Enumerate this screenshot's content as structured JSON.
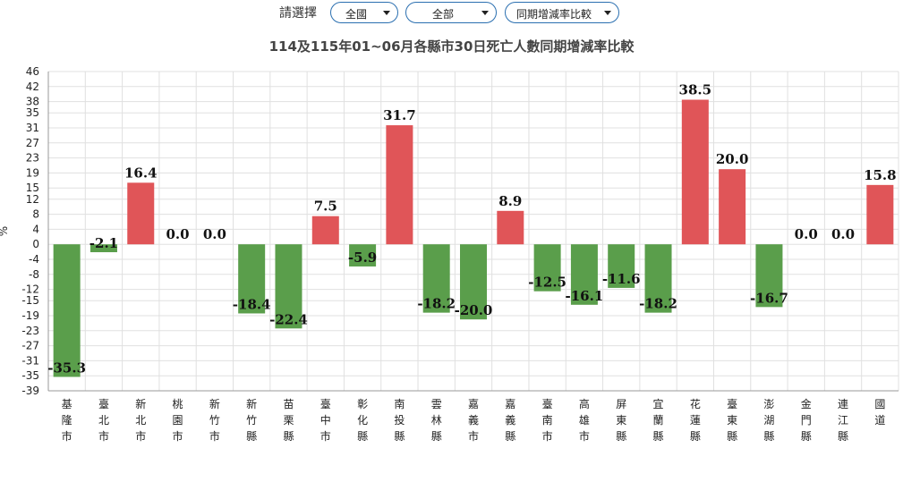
{
  "filters": {
    "label": "請選擇",
    "region": "全國",
    "type": "全部",
    "metric": "同期增減率比較"
  },
  "chart_data": {
    "type": "bar",
    "title": "114及115年01~06月各縣市30日死亡人數同期增減率比較",
    "ylabel": "%",
    "ylim": [
      -39,
      46
    ],
    "yticks": [
      46,
      42,
      38,
      35,
      31,
      27,
      23,
      19,
      15,
      12,
      8,
      4,
      0,
      -4,
      -8,
      -12,
      -15,
      -19,
      -23,
      -27,
      -31,
      -35,
      -39
    ],
    "grid": true,
    "categories": [
      "基隆市",
      "臺北市",
      "新北市",
      "桃園市",
      "新竹市",
      "新竹縣",
      "苗栗縣",
      "臺中市",
      "彰化縣",
      "南投縣",
      "雲林縣",
      "嘉義市",
      "嘉義縣",
      "臺南市",
      "高雄市",
      "屏東縣",
      "宜蘭縣",
      "花蓮縣",
      "臺東縣",
      "澎湖縣",
      "金門縣",
      "連江縣",
      "國道"
    ],
    "values": [
      -35.3,
      -2.1,
      16.4,
      0.0,
      0.0,
      -18.4,
      -22.4,
      7.5,
      -5.9,
      31.7,
      -18.2,
      -20.0,
      8.9,
      -12.5,
      -16.1,
      -11.6,
      -18.2,
      38.5,
      20.0,
      -16.7,
      0.0,
      0.0,
      15.8
    ],
    "labels": [
      "-35.3",
      "-2.1",
      "16.4",
      "0.0",
      "0.0",
      "-18.4",
      "-22.4",
      "7.5",
      "-5.9",
      "31.7",
      "-18.2",
      "-20.0",
      "8.9",
      "-12.5",
      "-16.1",
      "-11.6",
      "-18.2",
      "38.5",
      "20.0",
      "-16.7",
      "0.0",
      "0.0",
      "15.8"
    ],
    "colors": {
      "positive": "#e05558",
      "negative": "#5a9e4b",
      "grid": "#e0e0e0",
      "axis": "#999999"
    }
  }
}
